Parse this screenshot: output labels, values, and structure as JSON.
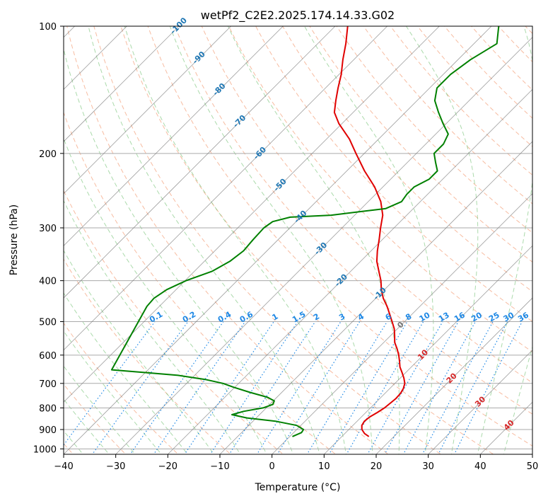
{
  "chart_data": {
    "type": "line",
    "title": "wetPf2_C2E2.2025.174.14.33.G02",
    "xlabel": "Temperature (°C)",
    "ylabel": "Pressure (hPa)",
    "xlim": [
      -40,
      50
    ],
    "ylim": [
      1030,
      100
    ],
    "y_scale": "log",
    "x_ticks": [
      -40,
      -30,
      -20,
      -10,
      0,
      10,
      20,
      30,
      40,
      50
    ],
    "y_ticks": [
      100,
      200,
      300,
      400,
      500,
      600,
      700,
      800,
      900,
      1000
    ],
    "skew_degrees": 45,
    "grid": true,
    "colors": {
      "temperature": "#e00000",
      "dewpoint": "#008000",
      "dry_adiabat": "#f4a582",
      "moist_adiabat": "#66bb66",
      "mixing_ratio": "#1e88e5",
      "isotherm": "#777777",
      "isotherm_label": "#1f77b4",
      "isotherm_label_positive": "#d62728",
      "zero_isotherm_label": "#777777"
    },
    "series": [
      {
        "name": "",
        "role": "temperature",
        "points": [
          {
            "p": 935,
            "t": 15.2
          },
          {
            "p": 920,
            "t": 13.8
          },
          {
            "p": 900,
            "t": 12.5
          },
          {
            "p": 880,
            "t": 11.7
          },
          {
            "p": 860,
            "t": 11.4
          },
          {
            "p": 840,
            "t": 11.6
          },
          {
            "p": 820,
            "t": 12.2
          },
          {
            "p": 800,
            "t": 12.7
          },
          {
            "p": 780,
            "t": 12.9
          },
          {
            "p": 760,
            "t": 13.1
          },
          {
            "p": 740,
            "t": 13.0
          },
          {
            "p": 720,
            "t": 12.6
          },
          {
            "p": 700,
            "t": 11.9
          },
          {
            "p": 680,
            "t": 10.7
          },
          {
            "p": 660,
            "t": 9.3
          },
          {
            "p": 640,
            "t": 7.8
          },
          {
            "p": 620,
            "t": 6.6
          },
          {
            "p": 600,
            "t": 5.3
          },
          {
            "p": 580,
            "t": 3.8
          },
          {
            "p": 560,
            "t": 2.1
          },
          {
            "p": 540,
            "t": 0.8
          },
          {
            "p": 520,
            "t": -0.6
          },
          {
            "p": 500,
            "t": -2.4
          },
          {
            "p": 480,
            "t": -4.3
          },
          {
            "p": 460,
            "t": -6.3
          },
          {
            "p": 440,
            "t": -8.6
          },
          {
            "p": 420,
            "t": -10.6
          },
          {
            "p": 400,
            "t": -12.4
          },
          {
            "p": 380,
            "t": -14.6
          },
          {
            "p": 360,
            "t": -16.9
          },
          {
            "p": 340,
            "t": -18.8
          },
          {
            "p": 320,
            "t": -20.6
          },
          {
            "p": 300,
            "t": -22.6
          },
          {
            "p": 280,
            "t": -24.6
          },
          {
            "p": 260,
            "t": -27.6
          },
          {
            "p": 240,
            "t": -31.6
          },
          {
            "p": 220,
            "t": -36.6
          },
          {
            "p": 200,
            "t": -41.6
          },
          {
            "p": 185,
            "t": -45.6
          },
          {
            "p": 170,
            "t": -50.6
          },
          {
            "p": 160,
            "t": -53.6
          },
          {
            "p": 150,
            "t": -55.6
          },
          {
            "p": 140,
            "t": -57.6
          },
          {
            "p": 130,
            "t": -59.6
          },
          {
            "p": 120,
            "t": -62.1
          },
          {
            "p": 110,
            "t": -64.6
          },
          {
            "p": 100,
            "t": -67.6
          }
        ]
      },
      {
        "name": "",
        "role": "dewpoint",
        "points": [
          {
            "p": 935,
            "t": 0.5
          },
          {
            "p": 915,
            "t": 1.5
          },
          {
            "p": 900,
            "t": 1.3
          },
          {
            "p": 880,
            "t": -0.8
          },
          {
            "p": 860,
            "t": -5.7
          },
          {
            "p": 845,
            "t": -11.8
          },
          {
            "p": 830,
            "t": -15.3
          },
          {
            "p": 815,
            "t": -13.7
          },
          {
            "p": 800,
            "t": -10.6
          },
          {
            "p": 785,
            "t": -9.4
          },
          {
            "p": 770,
            "t": -9.8
          },
          {
            "p": 755,
            "t": -11.8
          },
          {
            "p": 735,
            "t": -16.1
          },
          {
            "p": 715,
            "t": -20.2
          },
          {
            "p": 700,
            "t": -23.0
          },
          {
            "p": 685,
            "t": -27.2
          },
          {
            "p": 670,
            "t": -33.2
          },
          {
            "p": 660,
            "t": -40.0
          },
          {
            "p": 650,
            "t": -47.0
          },
          {
            "p": 460,
            "t": -52.4
          },
          {
            "p": 440,
            "t": -52.6
          },
          {
            "p": 420,
            "t": -51.8
          },
          {
            "p": 400,
            "t": -49.8
          },
          {
            "p": 380,
            "t": -46.6
          },
          {
            "p": 360,
            "t": -45.1
          },
          {
            "p": 340,
            "t": -44.5
          },
          {
            "p": 320,
            "t": -44.8
          },
          {
            "p": 300,
            "t": -45.0
          },
          {
            "p": 290,
            "t": -44.5
          },
          {
            "p": 283,
            "t": -42.0
          },
          {
            "p": 280,
            "t": -34.5
          },
          {
            "p": 270,
            "t": -25.3
          },
          {
            "p": 260,
            "t": -23.6
          },
          {
            "p": 250,
            "t": -24.0
          },
          {
            "p": 240,
            "t": -24.0
          },
          {
            "p": 230,
            "t": -22.6
          },
          {
            "p": 220,
            "t": -22.6
          },
          {
            "p": 210,
            "t": -24.6
          },
          {
            "p": 200,
            "t": -26.6
          },
          {
            "p": 190,
            "t": -26.6
          },
          {
            "p": 180,
            "t": -27.6
          },
          {
            "p": 170,
            "t": -30.6
          },
          {
            "p": 160,
            "t": -33.6
          },
          {
            "p": 150,
            "t": -36.6
          },
          {
            "p": 140,
            "t": -38.6
          },
          {
            "p": 130,
            "t": -38.6
          },
          {
            "p": 120,
            "t": -37.6
          },
          {
            "p": 110,
            "t": -35.6
          },
          {
            "p": 100,
            "t": -38.6
          }
        ]
      }
    ],
    "isotherm_labels": [
      "-100",
      "-90",
      "-80",
      "-70",
      "-60",
      "-50",
      "-40",
      "-30",
      "-20",
      "-10",
      "0",
      "10",
      "20",
      "30",
      "40"
    ],
    "mixing_ratio_labels": [
      "0.1",
      "0.2",
      "0.4",
      "0.6",
      "1",
      "1.5",
      "2",
      "3",
      "4",
      "6",
      "8",
      "10",
      "13",
      "16",
      "20",
      "25",
      "30",
      "36"
    ]
  }
}
